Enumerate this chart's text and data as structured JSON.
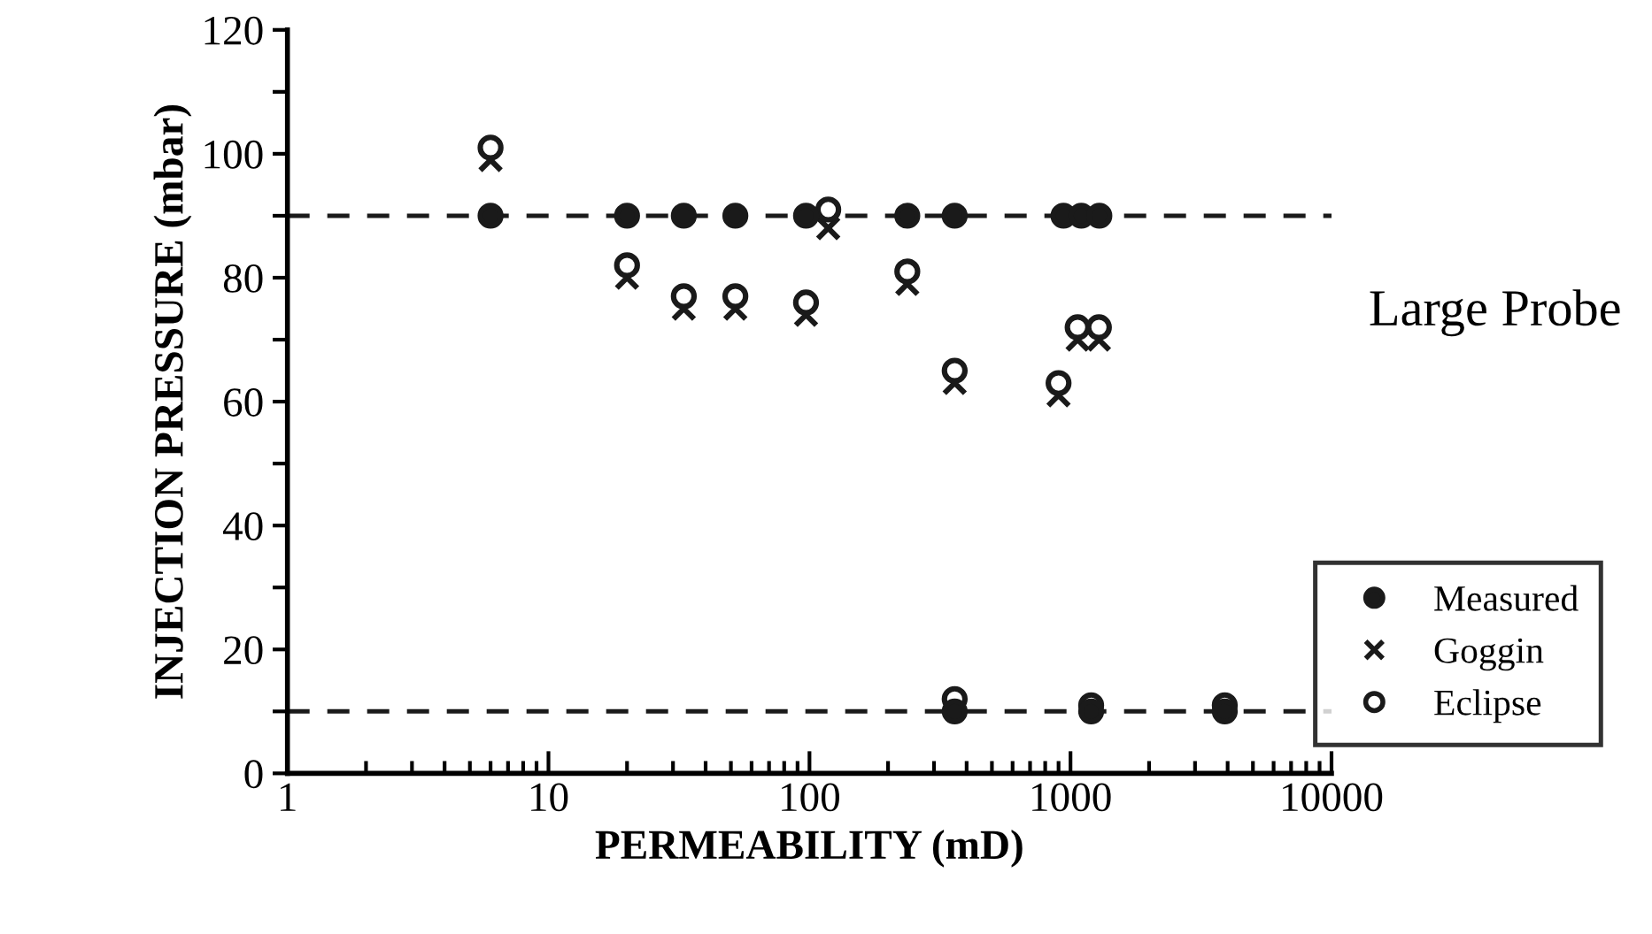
{
  "chart_data": {
    "type": "scatter",
    "xlabel": "PERMEABILITY (mD)",
    "ylabel": "INJECTION PRESSURE (mbar)",
    "log": "x",
    "xlim": [
      1,
      10000
    ],
    "xticks": [
      1,
      10,
      100,
      1000,
      10000
    ],
    "ylim": [
      0,
      120
    ],
    "yticks": [
      0,
      {
        "value": 10,
        "label": null
      },
      20,
      {
        "value": 30,
        "label": null
      },
      40,
      {
        "value": 50,
        "label": null
      },
      60,
      {
        "value": 70,
        "label": null
      },
      80,
      {
        "value": 90,
        "label": null
      },
      100,
      {
        "value": 110,
        "label": null
      },
      120
    ],
    "grid": false,
    "legend": "right",
    "annotations": [
      "Large Probe"
    ],
    "ref_lines": [
      {
        "axis": "y",
        "value": 90,
        "color": "#1a1a1a",
        "line_style": "dashed"
      },
      {
        "axis": "y",
        "value": 10,
        "color": "#1a1a1a",
        "line_style": "dashed"
      }
    ],
    "series": [
      {
        "name": "Measured",
        "color": "#1a1a1a",
        "marker": "circle",
        "x": [
          6,
          20,
          33,
          52,
          97,
          237,
          360,
          940,
          1100,
          1290,
          360,
          1200,
          3900
        ],
        "values": [
          90,
          90,
          90,
          90,
          90,
          90,
          90,
          90,
          90,
          90,
          10,
          10,
          10
        ]
      },
      {
        "name": "Goggin",
        "color": "#1a1a1a",
        "marker": "cross",
        "x": [
          6,
          20,
          33,
          52,
          97,
          118,
          237,
          360,
          900,
          1065,
          1285
        ],
        "values": [
          99,
          80,
          75,
          75,
          74,
          88,
          79,
          63,
          61,
          70,
          70
        ]
      },
      {
        "name": "Eclipse",
        "color": "#1a1a1a",
        "marker": "open circle",
        "x": [
          6,
          20,
          33,
          52,
          97,
          118,
          237,
          360,
          900,
          1065,
          1285,
          360,
          1200,
          3900
        ],
        "values": [
          101,
          82,
          77,
          77,
          76,
          91,
          81,
          65,
          63,
          72,
          72,
          12,
          11,
          11
        ]
      }
    ]
  }
}
